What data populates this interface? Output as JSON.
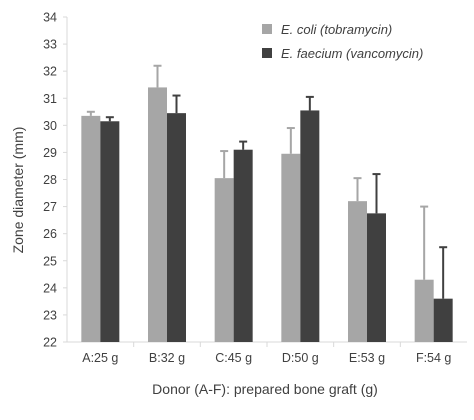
{
  "chart_data": {
    "type": "bar",
    "title": "",
    "xlabel": "Donor (A-F): prepared bone graft (g)",
    "ylabel": "Zone diameter (mm)",
    "ylim": [
      22,
      34
    ],
    "yticks": [
      22,
      23,
      24,
      25,
      26,
      27,
      28,
      29,
      30,
      31,
      32,
      33,
      34
    ],
    "categories": [
      "A:25 g",
      "B:32 g",
      "C:45 g",
      "D:50 g",
      "E:53 g",
      "F:54 g"
    ],
    "series": [
      {
        "name": "E. coli (tobramycin)",
        "color": "#a6a6a6",
        "values": [
          30.35,
          31.4,
          28.05,
          28.95,
          27.2,
          24.3
        ],
        "errors": [
          0.15,
          0.8,
          1.0,
          0.95,
          0.85,
          2.7
        ]
      },
      {
        "name": "E. faecium (vancomycin)",
        "color": "#404040",
        "values": [
          30.15,
          30.45,
          29.1,
          30.55,
          26.75,
          23.6
        ],
        "errors": [
          0.15,
          0.65,
          0.3,
          0.5,
          1.45,
          1.9
        ]
      }
    ],
    "legend_position": "top-right",
    "grid": false
  }
}
